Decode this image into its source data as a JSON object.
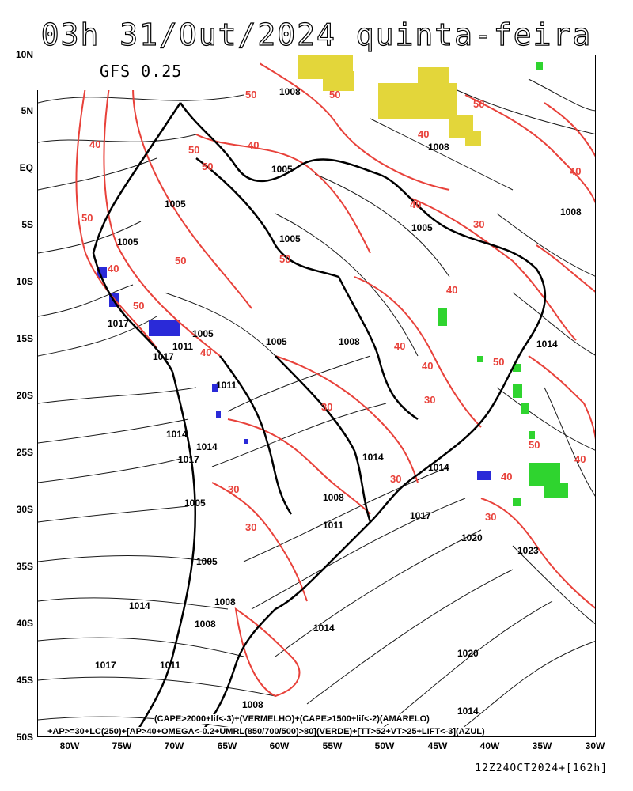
{
  "title": "03h 31/Out/2024 quinta-feira",
  "model": "GFS 0.25",
  "run_stamp": "12Z24OCT2024+[162h]",
  "legend_line1": "(CAPE>2000+lif<-3)+(VERMELHO)+(CAPE>1500+lif<-2)(AMARELO)",
  "legend_line2": "+AP>=30+LC(250)+[AP>40+OMEGA<-0.2+UMRL(850/700/500)>80](VERDE)+[TT>52+VT>25+LIFT<-3](AZUL)",
  "latitude_labels": [
    "10N",
    "5N",
    "EQ",
    "5S",
    "10S",
    "15S",
    "20S",
    "25S",
    "30S",
    "35S",
    "40S",
    "45S",
    "50S"
  ],
  "longitude_labels": [
    "80W",
    "75W",
    "70W",
    "65W",
    "60W",
    "55W",
    "50W",
    "45W",
    "40W",
    "35W",
    "30W"
  ],
  "pressure_labels": [
    "1008",
    "1005",
    "1005",
    "1005",
    "1005",
    "1005",
    "1008",
    "1008",
    "1017",
    "1005",
    "1014",
    "1011",
    "1017",
    "1011",
    "1014",
    "1014",
    "1017",
    "1008",
    "1005",
    "1005",
    "1014",
    "1014",
    "1017",
    "1020",
    "1023",
    "1008",
    "1011",
    "1005",
    "1008",
    "1008",
    "1014",
    "1014",
    "1020",
    "1017",
    "1011",
    "1008",
    "1014"
  ],
  "cape_labels": [
    "50",
    "50",
    "50",
    "50",
    "40",
    "40",
    "40",
    "50",
    "50",
    "50",
    "50",
    "50",
    "40",
    "40",
    "40",
    "30",
    "40",
    "40",
    "40",
    "40",
    "30",
    "30",
    "30",
    "30",
    "30",
    "40",
    "40",
    "50",
    "50",
    "30"
  ],
  "colors": {
    "coastline": "#000000",
    "cape_contour": "#e8413a",
    "yellow_area": "#e3d63a",
    "green_area": "#2fd42f",
    "blue_area": "#2a2ad8",
    "streamline": "#000000"
  }
}
